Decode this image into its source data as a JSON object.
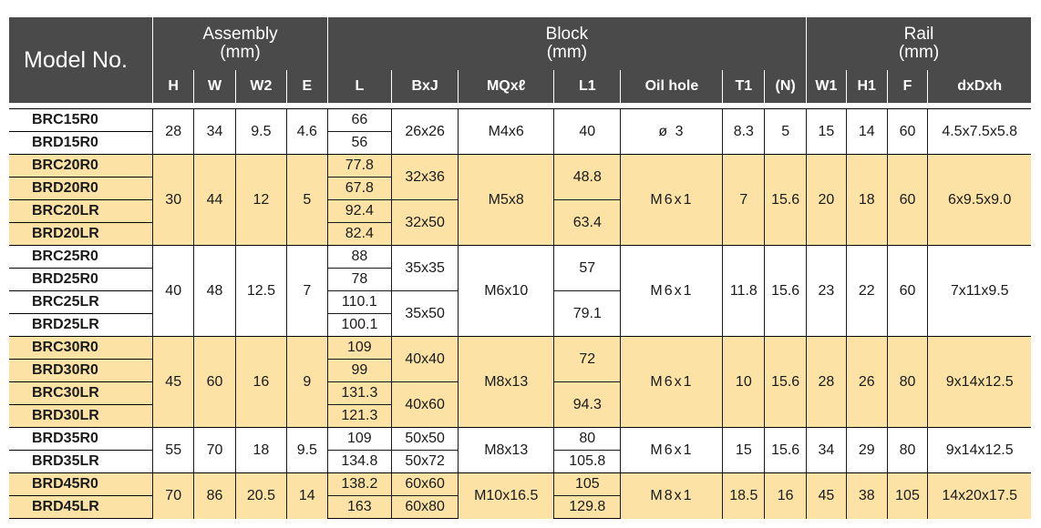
{
  "header": {
    "model": "Model No.",
    "assembly": {
      "title": "Assembly",
      "unit": "(mm)"
    },
    "block": {
      "title": "Block",
      "unit": "(mm)"
    },
    "rail": {
      "title": "Rail",
      "unit": "(mm)"
    },
    "columns": [
      "H",
      "W",
      "W2",
      "E",
      "L",
      "BxJ",
      "MQxℓ",
      "L1",
      "Oil hole",
      "T1",
      "(N)",
      "W1",
      "H1",
      "F",
      "dxDxh"
    ]
  },
  "groups": [
    {
      "color": "white",
      "models": [
        "BRC15R0",
        "BRD15R0"
      ],
      "H": "28",
      "W": "34",
      "W2": "9.5",
      "E": "4.6",
      "L": [
        "66",
        "56"
      ],
      "BxJ": [
        "26x26"
      ],
      "MQ": "M4x6",
      "L1": [
        "40"
      ],
      "oil": "ø 3",
      "T1": "8.3",
      "N": "5",
      "W1": "15",
      "H1": "14",
      "F": "60",
      "dDh": "4.5x7.5x5.8"
    },
    {
      "color": "yellow",
      "models": [
        "BRC20R0",
        "BRD20R0",
        "BRC20LR",
        "BRD20LR"
      ],
      "H": "30",
      "W": "44",
      "W2": "12",
      "E": "5",
      "L": [
        "77.8",
        "67.8",
        "92.4",
        "82.4"
      ],
      "BxJ": [
        "32x36",
        "32x50"
      ],
      "MQ": "M5x8",
      "L1": [
        "48.8",
        "63.4"
      ],
      "oil": "M6x1",
      "T1": "7",
      "N": "15.6",
      "W1": "20",
      "H1": "18",
      "F": "60",
      "dDh": "6x9.5x9.0"
    },
    {
      "color": "white",
      "models": [
        "BRC25R0",
        "BRD25R0",
        "BRC25LR",
        "BRD25LR"
      ],
      "H": "40",
      "W": "48",
      "W2": "12.5",
      "E": "7",
      "L": [
        "88",
        "78",
        "110.1",
        "100.1"
      ],
      "BxJ": [
        "35x35",
        "35x50"
      ],
      "MQ": "M6x10",
      "L1": [
        "57",
        "79.1"
      ],
      "oil": "M6x1",
      "T1": "11.8",
      "N": "15.6",
      "W1": "23",
      "H1": "22",
      "F": "60",
      "dDh": "7x11x9.5"
    },
    {
      "color": "yellow",
      "models": [
        "BRC30R0",
        "BRD30R0",
        "BRC30LR",
        "BRD30LR"
      ],
      "H": "45",
      "W": "60",
      "W2": "16",
      "E": "9",
      "L": [
        "109",
        "99",
        "131.3",
        "121.3"
      ],
      "BxJ": [
        "40x40",
        "40x60"
      ],
      "MQ": "M8x13",
      "L1": [
        "72",
        "94.3"
      ],
      "oil": "M6x1",
      "T1": "10",
      "N": "15.6",
      "W1": "28",
      "H1": "26",
      "F": "80",
      "dDh": "9x14x12.5"
    },
    {
      "color": "white",
      "models": [
        "BRD35R0",
        "BRD35LR"
      ],
      "H": "55",
      "W": "70",
      "W2": "18",
      "E": "9.5",
      "L": [
        "109",
        "134.8"
      ],
      "BxJ": [
        "50x50",
        "50x72"
      ],
      "MQ": "M8x13",
      "L1": [
        "80",
        "105.8"
      ],
      "oil": "M6x1",
      "T1": "15",
      "N": "15.6",
      "W1": "34",
      "H1": "29",
      "F": "80",
      "dDh": "9x14x12.5"
    },
    {
      "color": "yellow",
      "models": [
        "BRD45R0",
        "BRD45LR"
      ],
      "H": "70",
      "W": "86",
      "W2": "20.5",
      "E": "14",
      "L": [
        "138.2",
        "163"
      ],
      "BxJ": [
        "60x60",
        "60x80"
      ],
      "MQ": "M10x16.5",
      "L1": [
        "105",
        "129.8"
      ],
      "oil": "M8x1",
      "T1": "18.5",
      "N": "16",
      "W1": "45",
      "H1": "38",
      "F": "105",
      "dDh": "14x20x17.5"
    }
  ]
}
